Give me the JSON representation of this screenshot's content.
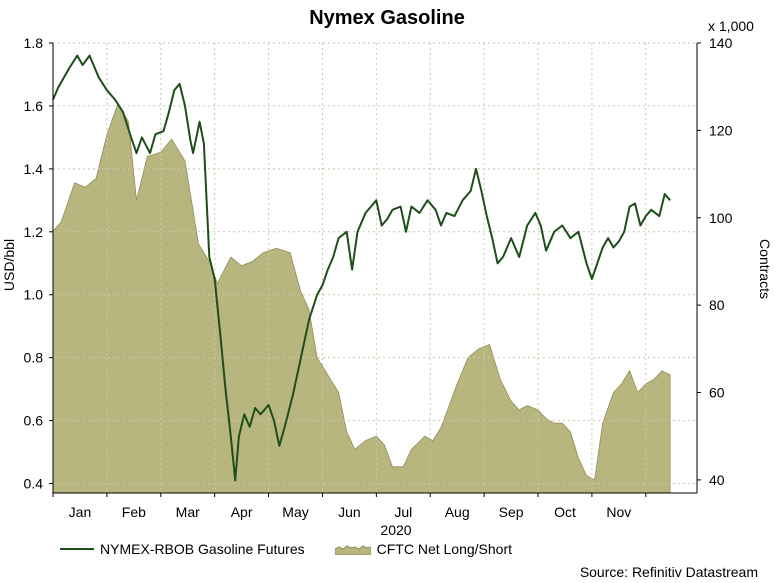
{
  "colors": {
    "line": "#1f4d1b",
    "area": "#b8b67f",
    "area_edge": "#8f8d57",
    "grid": "#c9c9a8"
  },
  "chart_data": {
    "type": "line",
    "title": "Nymex Gasoline",
    "xlabel": "2020",
    "ylabel": "USD/bbl",
    "y2label": "Contracts",
    "y2_multiplier": "x 1,000",
    "ylim": [
      0.37,
      1.8
    ],
    "y2lim": [
      37,
      140
    ],
    "yticks": [
      "1.8",
      "1.6",
      "1.4",
      "1.2",
      "1.0",
      "0.8",
      "0.6",
      "0.4"
    ],
    "y2ticks": [
      "140",
      "120",
      "100",
      "80",
      "60",
      "40"
    ],
    "month_labels": [
      "Jan",
      "Feb",
      "Mar",
      "Apr",
      "May",
      "Jun",
      "Jul",
      "Aug",
      "Sep",
      "Oct",
      "Nov"
    ],
    "x_range": [
      0,
      11.95
    ],
    "grid": true,
    "legend_position": "bottom",
    "series": [
      {
        "name": "NYMEX-RBOB Gasoline Futures",
        "type": "line",
        "axis": "left",
        "points": [
          [
            0.0,
            1.62
          ],
          [
            0.1,
            1.66
          ],
          [
            0.3,
            1.72
          ],
          [
            0.45,
            1.76
          ],
          [
            0.55,
            1.73
          ],
          [
            0.68,
            1.76
          ],
          [
            0.85,
            1.69
          ],
          [
            1.0,
            1.65
          ],
          [
            1.15,
            1.62
          ],
          [
            1.3,
            1.58
          ],
          [
            1.45,
            1.5
          ],
          [
            1.55,
            1.45
          ],
          [
            1.65,
            1.5
          ],
          [
            1.8,
            1.45
          ],
          [
            1.9,
            1.51
          ],
          [
            2.05,
            1.52
          ],
          [
            2.15,
            1.58
          ],
          [
            2.25,
            1.65
          ],
          [
            2.35,
            1.67
          ],
          [
            2.45,
            1.6
          ],
          [
            2.55,
            1.49
          ],
          [
            2.6,
            1.45
          ],
          [
            2.72,
            1.55
          ],
          [
            2.8,
            1.48
          ],
          [
            2.85,
            1.3
          ],
          [
            2.9,
            1.12
          ],
          [
            3.0,
            1.05
          ],
          [
            3.1,
            0.88
          ],
          [
            3.2,
            0.7
          ],
          [
            3.3,
            0.55
          ],
          [
            3.38,
            0.41
          ],
          [
            3.45,
            0.55
          ],
          [
            3.55,
            0.62
          ],
          [
            3.65,
            0.58
          ],
          [
            3.75,
            0.64
          ],
          [
            3.85,
            0.62
          ],
          [
            4.0,
            0.65
          ],
          [
            4.1,
            0.6
          ],
          [
            4.2,
            0.52
          ],
          [
            4.3,
            0.58
          ],
          [
            4.45,
            0.68
          ],
          [
            4.6,
            0.8
          ],
          [
            4.75,
            0.92
          ],
          [
            4.9,
            1.0
          ],
          [
            5.0,
            1.03
          ],
          [
            5.1,
            1.08
          ],
          [
            5.2,
            1.12
          ],
          [
            5.3,
            1.18
          ],
          [
            5.45,
            1.2
          ],
          [
            5.55,
            1.08
          ],
          [
            5.65,
            1.2
          ],
          [
            5.8,
            1.26
          ],
          [
            6.0,
            1.3
          ],
          [
            6.1,
            1.22
          ],
          [
            6.2,
            1.24
          ],
          [
            6.3,
            1.27
          ],
          [
            6.45,
            1.28
          ],
          [
            6.55,
            1.2
          ],
          [
            6.65,
            1.28
          ],
          [
            6.8,
            1.26
          ],
          [
            6.95,
            1.3
          ],
          [
            7.1,
            1.27
          ],
          [
            7.2,
            1.22
          ],
          [
            7.3,
            1.26
          ],
          [
            7.45,
            1.25
          ],
          [
            7.6,
            1.3
          ],
          [
            7.75,
            1.33
          ],
          [
            7.85,
            1.4
          ],
          [
            7.95,
            1.33
          ],
          [
            8.05,
            1.25
          ],
          [
            8.15,
            1.18
          ],
          [
            8.25,
            1.1
          ],
          [
            8.35,
            1.12
          ],
          [
            8.5,
            1.18
          ],
          [
            8.65,
            1.12
          ],
          [
            8.8,
            1.22
          ],
          [
            8.95,
            1.26
          ],
          [
            9.05,
            1.22
          ],
          [
            9.15,
            1.14
          ],
          [
            9.3,
            1.2
          ],
          [
            9.45,
            1.22
          ],
          [
            9.6,
            1.18
          ],
          [
            9.75,
            1.2
          ],
          [
            9.9,
            1.1
          ],
          [
            10.0,
            1.05
          ],
          [
            10.1,
            1.1
          ],
          [
            10.2,
            1.15
          ],
          [
            10.3,
            1.18
          ],
          [
            10.4,
            1.15
          ],
          [
            10.5,
            1.17
          ],
          [
            10.6,
            1.2
          ],
          [
            10.7,
            1.28
          ],
          [
            10.8,
            1.29
          ],
          [
            10.9,
            1.22
          ],
          [
            11.0,
            1.25
          ],
          [
            11.1,
            1.27
          ],
          [
            11.25,
            1.25
          ],
          [
            11.35,
            1.32
          ],
          [
            11.45,
            1.3
          ]
        ]
      },
      {
        "name": "CFTC Net Long/Short",
        "type": "area",
        "axis": "right",
        "points": [
          [
            0.0,
            97
          ],
          [
            0.15,
            99
          ],
          [
            0.4,
            108
          ],
          [
            0.6,
            107
          ],
          [
            0.8,
            109
          ],
          [
            1.0,
            119
          ],
          [
            1.2,
            126
          ],
          [
            1.4,
            122
          ],
          [
            1.55,
            104
          ],
          [
            1.75,
            114
          ],
          [
            2.0,
            115
          ],
          [
            2.2,
            118
          ],
          [
            2.45,
            113
          ],
          [
            2.7,
            94
          ],
          [
            2.9,
            90
          ],
          [
            3.05,
            85
          ],
          [
            3.3,
            91
          ],
          [
            3.5,
            89
          ],
          [
            3.7,
            90
          ],
          [
            3.9,
            92
          ],
          [
            4.15,
            93
          ],
          [
            4.4,
            92
          ],
          [
            4.6,
            83
          ],
          [
            4.75,
            79
          ],
          [
            4.9,
            68
          ],
          [
            5.1,
            64
          ],
          [
            5.3,
            60
          ],
          [
            5.45,
            51
          ],
          [
            5.6,
            47
          ],
          [
            5.8,
            49
          ],
          [
            6.0,
            50
          ],
          [
            6.15,
            48
          ],
          [
            6.3,
            43
          ],
          [
            6.5,
            43
          ],
          [
            6.65,
            47
          ],
          [
            6.9,
            50
          ],
          [
            7.05,
            49
          ],
          [
            7.2,
            52
          ],
          [
            7.35,
            57
          ],
          [
            7.5,
            62
          ],
          [
            7.7,
            68
          ],
          [
            7.9,
            70
          ],
          [
            8.1,
            71
          ],
          [
            8.3,
            63
          ],
          [
            8.5,
            58
          ],
          [
            8.65,
            56
          ],
          [
            8.8,
            57
          ],
          [
            9.0,
            56
          ],
          [
            9.15,
            54
          ],
          [
            9.3,
            53
          ],
          [
            9.45,
            53
          ],
          [
            9.6,
            51
          ],
          [
            9.75,
            45
          ],
          [
            9.9,
            41
          ],
          [
            10.05,
            40
          ],
          [
            10.2,
            53
          ],
          [
            10.4,
            60
          ],
          [
            10.55,
            62
          ],
          [
            10.7,
            65
          ],
          [
            10.85,
            60
          ],
          [
            11.0,
            62
          ],
          [
            11.15,
            63
          ],
          [
            11.3,
            65
          ],
          [
            11.45,
            64
          ]
        ]
      }
    ]
  },
  "footer": {
    "source": "Source: Refinitiv Datastream"
  }
}
